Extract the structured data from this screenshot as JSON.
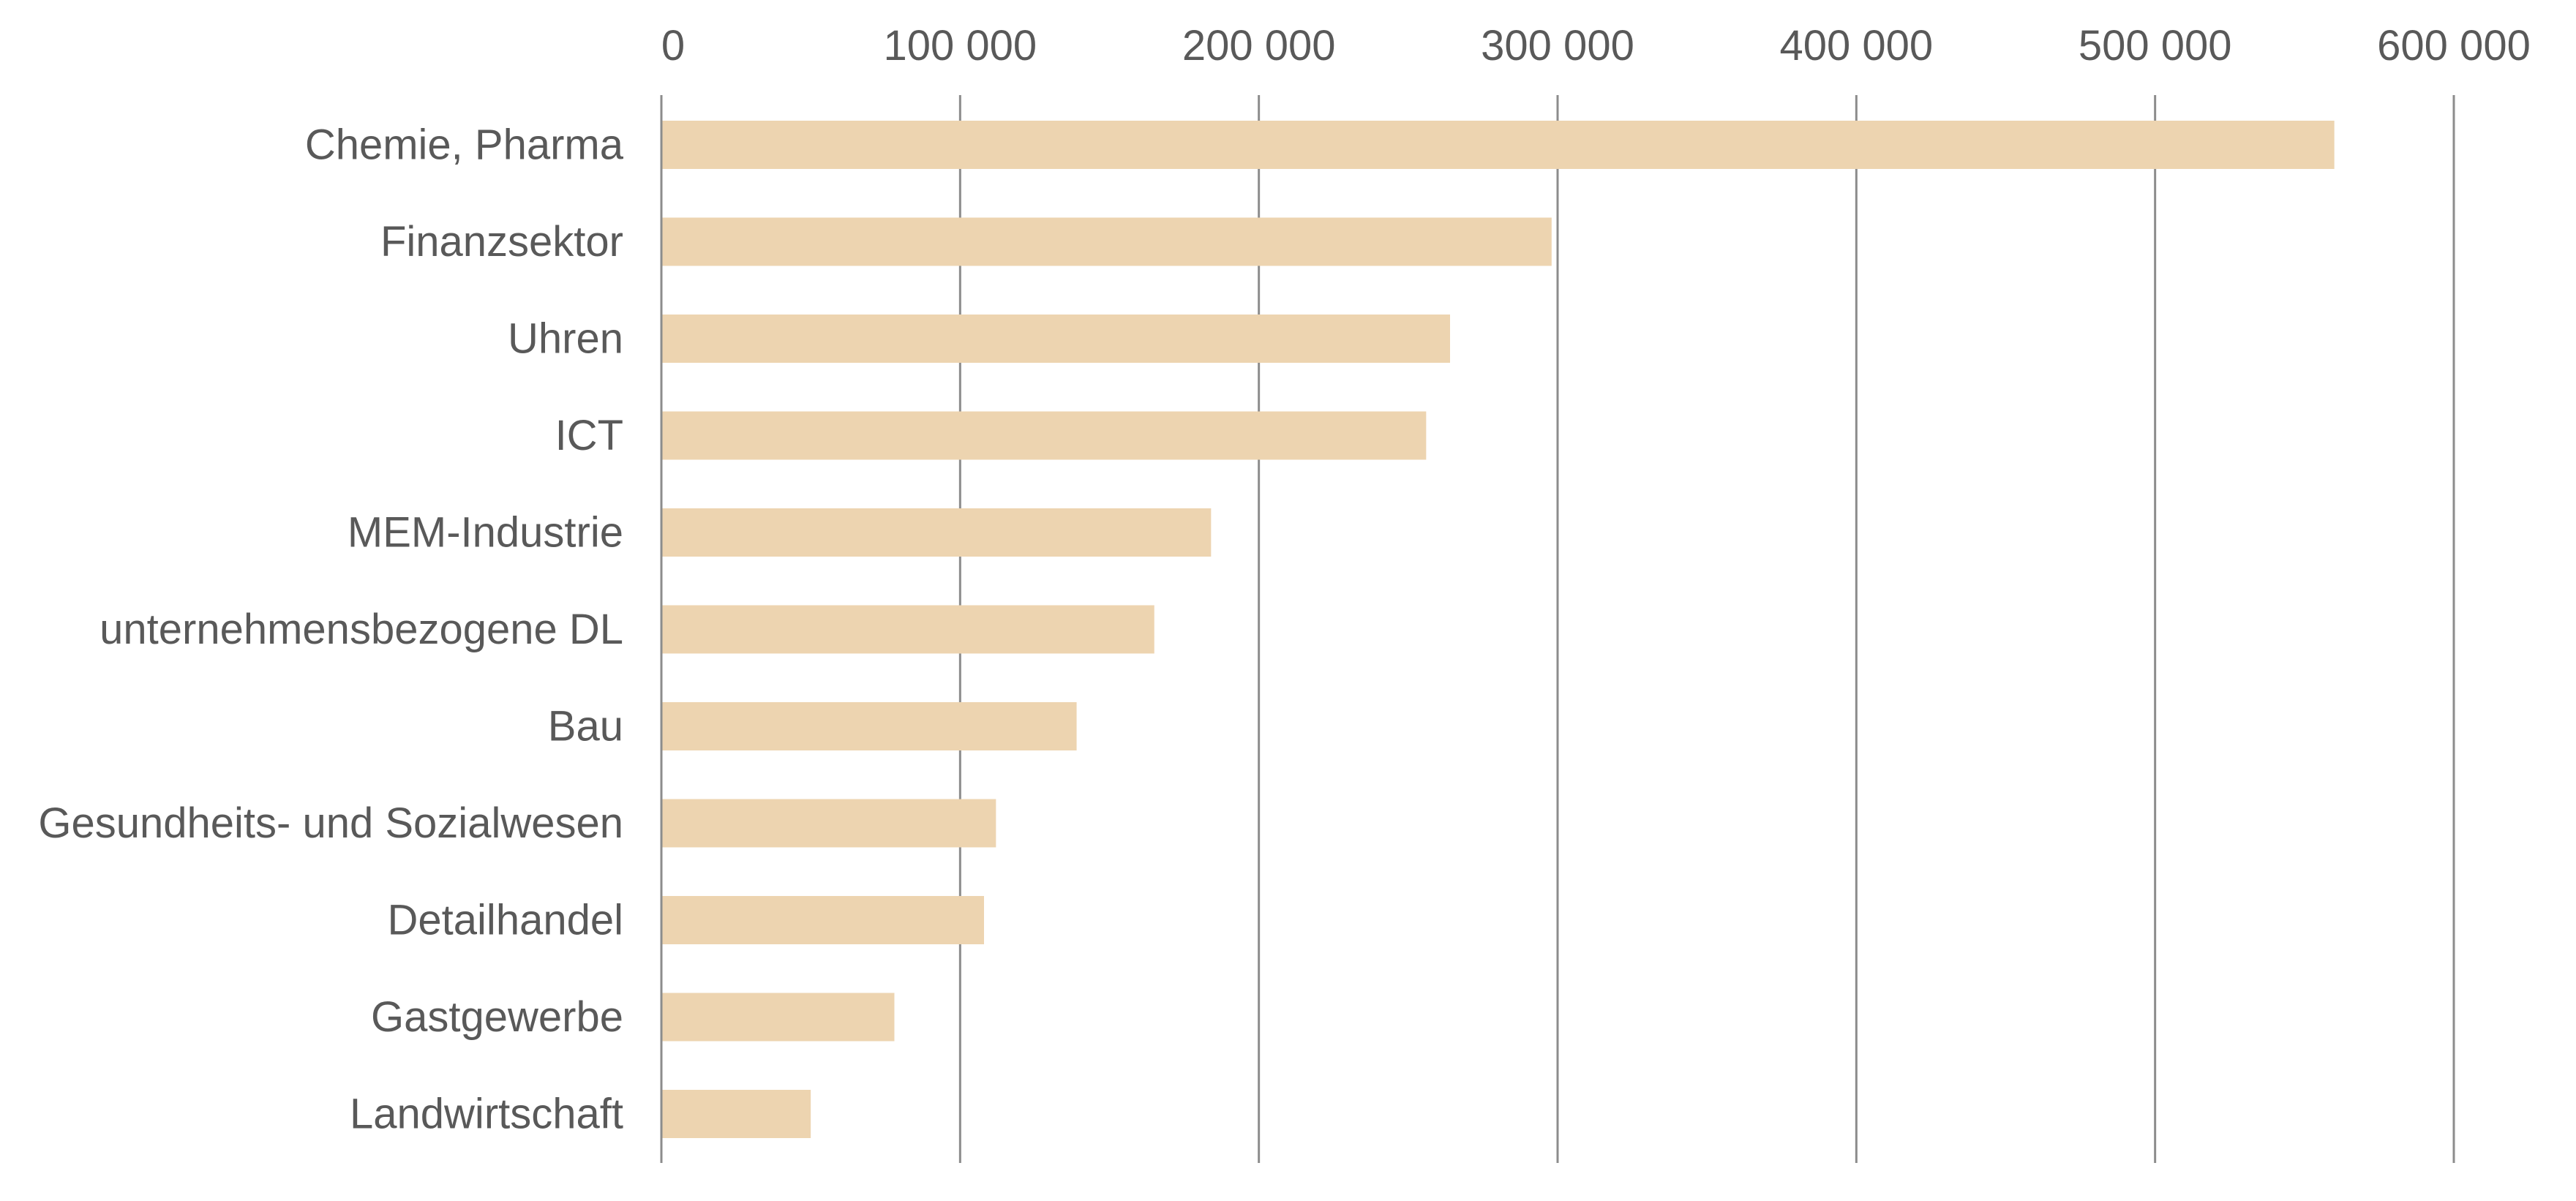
{
  "chart_data": {
    "type": "bar",
    "orientation": "horizontal",
    "categories": [
      "Chemie, Pharma",
      "Finanzsektor",
      "Uhren",
      "ICT",
      "MEM-Industrie",
      "unternehmensbezogene DL",
      "Bau",
      "Gesundheits- und Sozialwesen",
      "Detailhandel",
      "Gastgewerbe",
      "Landwirtschaft"
    ],
    "values": [
      560000,
      298000,
      264000,
      256000,
      184000,
      165000,
      139000,
      112000,
      108000,
      78000,
      50000
    ],
    "title": "",
    "xlabel": "",
    "ylabel": "",
    "xlim": [
      0,
      600000
    ],
    "xticks": [
      0,
      100000,
      200000,
      300000,
      400000,
      500000,
      600000
    ],
    "xtick_labels": [
      "0",
      "100 000",
      "200 000",
      "300 000",
      "400 000",
      "500 000",
      "600 000"
    ],
    "x_axis_position": "top",
    "grid": "vertical",
    "legend": "none",
    "colors": {
      "bar": "#edd4b0",
      "gridline": "#8c8c8c",
      "text": "#595959"
    }
  }
}
